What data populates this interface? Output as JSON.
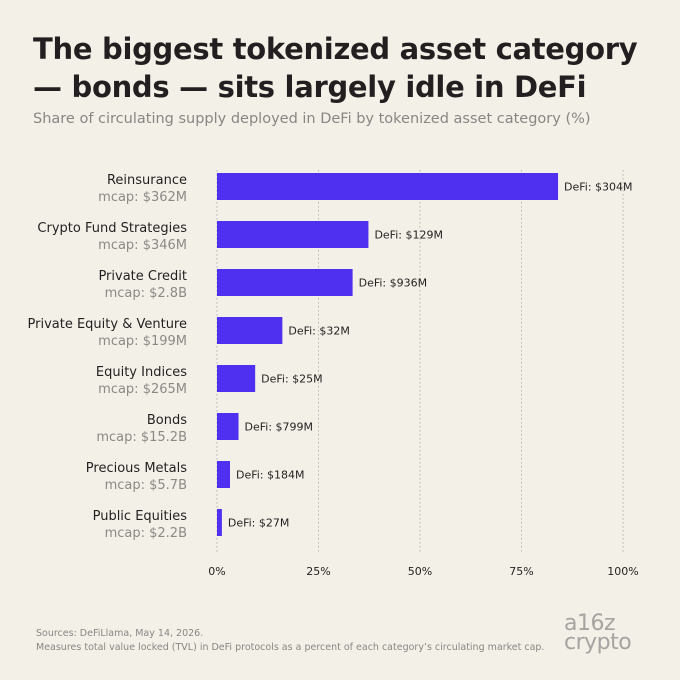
{
  "title": "The biggest tokenized asset category — bonds — sits largely idle in DeFi",
  "subtitle": "Share of circulating supply deployed in DeFi by tokenized asset category (%)",
  "footer": {
    "source": "Sources: DeFiLlama, May 14, 2026.",
    "note": "Measures total value locked (TVL) in DeFi protocols as a percent of each category’s circulating market cap."
  },
  "logo": {
    "line1": "a16z",
    "line2": "crypto"
  },
  "colors": {
    "bar": "#4f2ff0",
    "grid": "#b5b2ad",
    "background": "#f3f0e8"
  },
  "chart_data": {
    "type": "bar",
    "orientation": "horizontal",
    "categories": [
      "Reinsurance",
      "Crypto Fund Strategies",
      "Private Credit",
      "Private Equity & Venture",
      "Equity Indices",
      "Bonds",
      "Precious Metals",
      "Public Equities"
    ],
    "mcap_labels": [
      "mcap: $362M",
      "mcap: $346M",
      "mcap: $2.8B",
      "mcap: $199M",
      "mcap: $265M",
      "mcap: $15.2B",
      "mcap: $5.7B",
      "mcap: $2.2B"
    ],
    "values": [
      84,
      37.3,
      33.4,
      16.1,
      9.4,
      5.3,
      3.2,
      1.2
    ],
    "data_labels": [
      "DeFi: $304M",
      "DeFi: $129M",
      "DeFi: $936M",
      "DeFi: $32M",
      "DeFi: $25M",
      "DeFi: $799M",
      "DeFi: $184M",
      "DeFi: $27M"
    ],
    "xlim": [
      0,
      100
    ],
    "xticks": [
      0,
      25,
      50,
      75,
      100
    ],
    "xtick_labels": [
      "0%",
      "25%",
      "50%",
      "75%",
      "100%"
    ],
    "grid": true
  }
}
